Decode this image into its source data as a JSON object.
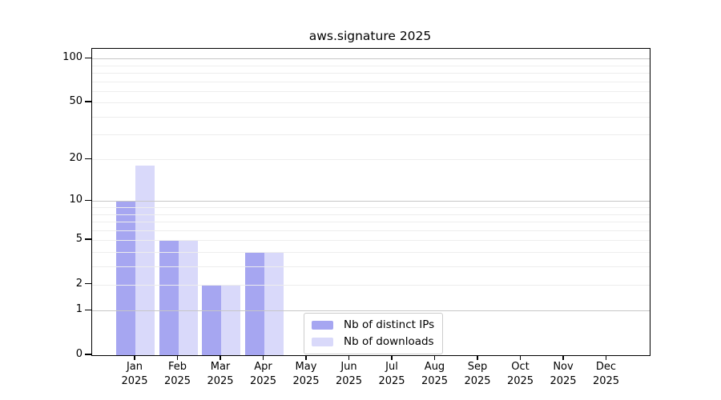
{
  "chart_data": {
    "type": "bar",
    "title": "aws.signature 2025",
    "categories": [
      "Jan",
      "Feb",
      "Mar",
      "Apr",
      "May",
      "Jun",
      "Jul",
      "Aug",
      "Sep",
      "Oct",
      "Nov",
      "Dec"
    ],
    "x_year": "2025",
    "series": [
      {
        "name": "Nb of distinct IPs",
        "color": "#a6a6f1",
        "values": [
          10,
          5,
          2,
          4,
          0,
          0,
          0,
          0,
          0,
          0,
          0,
          0
        ]
      },
      {
        "name": "Nb of downloads",
        "color": "#d9d9fa",
        "values": [
          18,
          5,
          2,
          4,
          0,
          0,
          0,
          0,
          0,
          0,
          0,
          0
        ]
      }
    ],
    "y_axis": {
      "scale": "log1p",
      "ticks": [
        0,
        1,
        2,
        5,
        10,
        20,
        50,
        100
      ],
      "tick_labels": [
        "0",
        "1",
        "2",
        "5",
        "10",
        "20",
        "50",
        "100"
      ],
      "minor_gridlines": [
        2,
        3,
        4,
        5,
        6,
        7,
        8,
        9,
        20,
        30,
        40,
        50,
        60,
        70,
        80,
        90
      ],
      "decade_gridlines": [
        1,
        10,
        100
      ],
      "ylim": [
        0,
        117
      ]
    },
    "legend": {
      "position": "bottom-center"
    },
    "colors": {
      "grid_minor": "#ededed",
      "grid_decade": "#c6c6c6",
      "axis": "#000000",
      "text": "#000000",
      "background": "#ffffff"
    }
  }
}
